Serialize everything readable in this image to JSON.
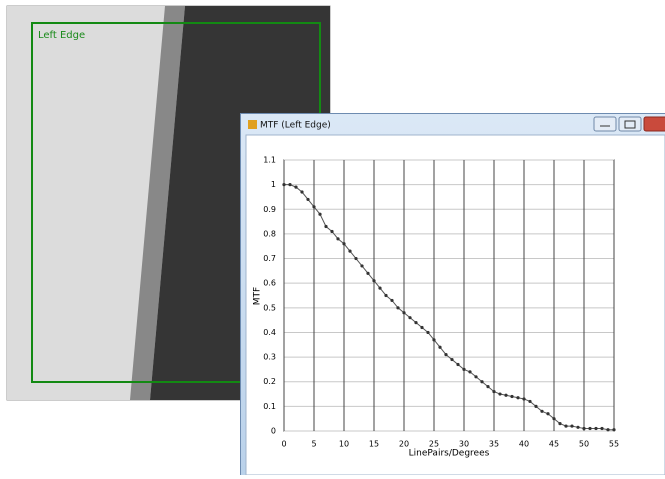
{
  "image_label": "Left Edge",
  "window": {
    "title": "MTF (Left Edge)"
  },
  "chart_data": {
    "type": "line",
    "xlabel": "LinePairs/Degrees",
    "ylabel": "MTF",
    "x": [
      0,
      1,
      2,
      3,
      4,
      5,
      6,
      7,
      8,
      9,
      10,
      11,
      12,
      13,
      14,
      15,
      16,
      17,
      18,
      19,
      20,
      21,
      22,
      23,
      24,
      25,
      26,
      27,
      28,
      29,
      30,
      31,
      32,
      33,
      34,
      35,
      36,
      37,
      38,
      39,
      40,
      41,
      42,
      43,
      44,
      45,
      46,
      47,
      48,
      49,
      50,
      51,
      52,
      53,
      54,
      55
    ],
    "series": [
      {
        "color": "#555555",
        "values": [
          1.0,
          1.0,
          0.99,
          0.97,
          0.94,
          0.91,
          0.88,
          0.83,
          0.81,
          0.78,
          0.76,
          0.73,
          0.7,
          0.67,
          0.64,
          0.61,
          0.58,
          0.55,
          0.53,
          0.5,
          0.48,
          0.46,
          0.44,
          0.42,
          0.4,
          0.37,
          0.34,
          0.31,
          0.29,
          0.27,
          0.25,
          0.24,
          0.22,
          0.2,
          0.18,
          0.16,
          0.15,
          0.145,
          0.14,
          0.135,
          0.13,
          0.12,
          0.1,
          0.08,
          0.07,
          0.05,
          0.03,
          0.02,
          0.02,
          0.015,
          0.01,
          0.01,
          0.01,
          0.01,
          0.005,
          0.005
        ]
      }
    ],
    "xlim": [
      0,
      55
    ],
    "xticks": [
      0,
      5,
      10,
      15,
      20,
      25,
      30,
      35,
      40,
      45,
      50,
      55
    ],
    "ylim": [
      0,
      1.1
    ],
    "yticks": [
      0,
      0.1,
      0.2,
      0.3,
      0.4,
      0.5,
      0.6,
      0.7,
      0.8,
      0.9,
      1,
      1.1
    ],
    "grid": true
  }
}
